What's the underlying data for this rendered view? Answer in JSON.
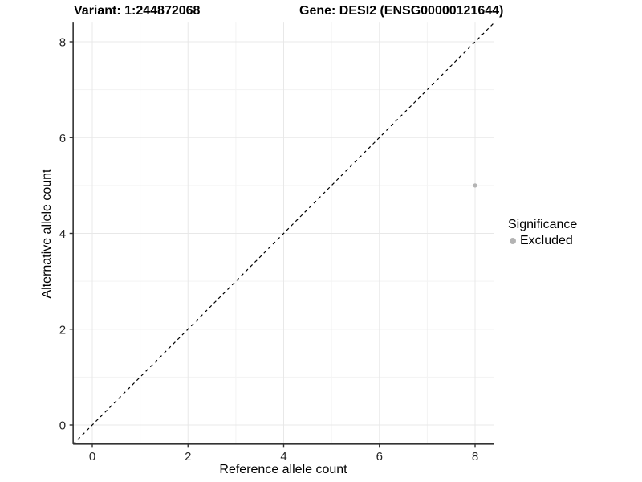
{
  "titles": {
    "variant": "Variant: 1:244872068",
    "gene": "Gene: DESI2 (ENSG00000121644)"
  },
  "axes": {
    "x_title": "Reference allele count",
    "y_title": "Alternative allele count"
  },
  "legend": {
    "title": "Significance",
    "items": [
      {
        "label": "Excluded",
        "color": "#b3b3b3"
      }
    ]
  },
  "colors": {
    "background": "#ffffff",
    "axis_line": "#333333",
    "tick_label": "#262626",
    "grid_major": "#e8e8e8",
    "grid_minor": "#f3f3f3",
    "reference_line": "#000000",
    "point": "#b4b4b4",
    "title_text": "#000000"
  },
  "chart_data": {
    "type": "scatter",
    "title": "Variant: 1:244872068    Gene: DESI2 (ENSG00000121644)",
    "xlabel": "Reference allele count",
    "ylabel": "Alternative allele count",
    "xlim": [
      -0.4,
      8.4
    ],
    "ylim": [
      -0.4,
      8.4
    ],
    "xticks": [
      0,
      2,
      4,
      6,
      8
    ],
    "yticks": [
      0,
      2,
      4,
      6,
      8
    ],
    "x_minor_ticks": [
      1,
      3,
      5,
      7
    ],
    "y_minor_ticks": [
      1,
      3,
      5,
      7
    ],
    "grid": true,
    "legend_position": "right",
    "series": [
      {
        "name": "Excluded",
        "color": "#b4b4b4",
        "marker": "circle",
        "marker_radius": 2.6,
        "points": [
          {
            "x": 8,
            "y": 5
          }
        ]
      }
    ],
    "reference_line": {
      "type": "identity",
      "style": "dashed",
      "color": "#000000",
      "from": [
        -0.4,
        -0.4
      ],
      "to": [
        8.4,
        8.4
      ]
    }
  }
}
